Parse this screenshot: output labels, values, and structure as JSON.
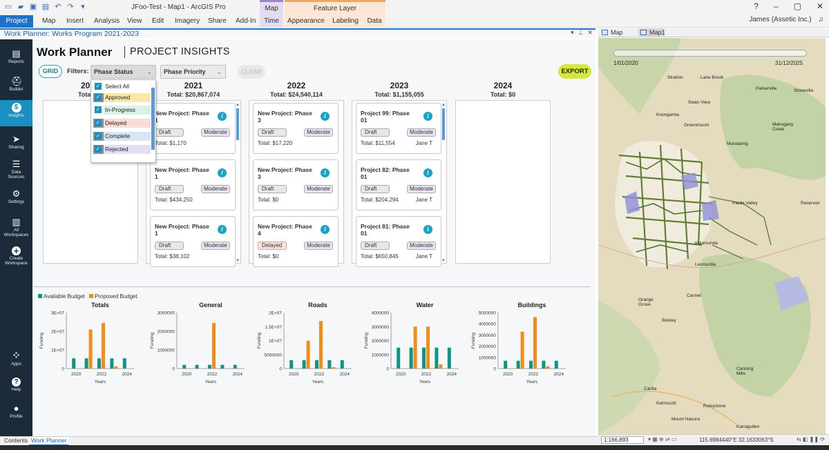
{
  "window": {
    "title": "JFoo-Test - Map1 - ArcGIS Pro",
    "ctx_map": "Map",
    "ctx_feature_layer": "Feature Layer",
    "user": "James (Assetic Inc.)"
  },
  "ribbon_tabs": [
    "Project",
    "Map",
    "Insert",
    "Analysis",
    "View",
    "Edit",
    "Imagery",
    "Share",
    "Add-In",
    "Time",
    "Appearance",
    "Labeling",
    "Data"
  ],
  "pane": {
    "title": "Work Planner: Works Program 2021-2023"
  },
  "sidebar": [
    {
      "label": "Reports",
      "icon": "reports-icon",
      "glyph": "▤"
    },
    {
      "label": "Builder",
      "icon": "builder-icon",
      "glyph": "⛑"
    },
    {
      "label": "Insights",
      "icon": "insights-icon",
      "glyph": "$"
    },
    {
      "label": "Sharing",
      "icon": "sharing-icon",
      "glyph": "➤"
    },
    {
      "label": "Data Sources",
      "icon": "database-icon",
      "glyph": "☰"
    },
    {
      "label": "Settings",
      "icon": "gear-icon",
      "glyph": "⚙"
    },
    {
      "label": "All Workspaces",
      "icon": "workspaces-icon",
      "glyph": "▥"
    },
    {
      "label": "Create Workspace",
      "icon": "plus-icon",
      "glyph": "+"
    },
    {
      "label": "Apps",
      "icon": "apps-grid-icon",
      "glyph": "⁘"
    },
    {
      "label": "Help",
      "icon": "help-icon",
      "glyph": "?"
    },
    {
      "label": "Profile",
      "icon": "profile-icon",
      "glyph": "●"
    }
  ],
  "header": {
    "title": "Work Planner",
    "subtitle": "PROJECT INSIGHTS"
  },
  "toolbar": {
    "grid_label": "GRID",
    "filters_label": "Filters:",
    "phase_status": "Phase Status",
    "phase_priority": "Phase Priority",
    "clear_label": "CLEAR",
    "export_label": "EXPORT"
  },
  "dropdown": {
    "items": [
      {
        "label": "Select All",
        "color": "#ffffff"
      },
      {
        "label": "Approved",
        "color": "#fbe8a6"
      },
      {
        "label": "In-Progress",
        "color": "#d9f2e6"
      },
      {
        "label": "Delayed",
        "color": "#f9dcd6"
      },
      {
        "label": "Complete",
        "color": "#d6e6f5"
      },
      {
        "label": "Rejected",
        "color": "#e4e0f3"
      }
    ]
  },
  "years": [
    {
      "year": "20",
      "total": "Total",
      "cards": []
    },
    {
      "year": "2021",
      "total": "Total: $20,867,074",
      "cards": [
        {
          "title": "New Project: Phase 1",
          "status": "Draft",
          "priority": "Moderate",
          "total": "Total: $1,170",
          "owner": ""
        },
        {
          "title": "New Project: Phase 1",
          "status": "Draft",
          "priority": "Moderate",
          "total": "Total: $434,250",
          "owner": ""
        },
        {
          "title": "New Project: Phase 1",
          "status": "Draft",
          "priority": "Moderate",
          "total": "Total: $38,102",
          "owner": ""
        }
      ]
    },
    {
      "year": "2022",
      "total": "Total: $24,540,114",
      "cards": [
        {
          "title": "New Project: Phase 3",
          "status": "Draft",
          "priority": "Moderate",
          "total": "Total: $17,220",
          "owner": ""
        },
        {
          "title": "New Project: Phase 3",
          "status": "Draft",
          "priority": "Moderate",
          "total": "Total: $0",
          "owner": ""
        },
        {
          "title": "New Project: Phase 4",
          "status": "Delayed",
          "priority": "Moderate",
          "total": "Total: $0",
          "owner": ""
        }
      ]
    },
    {
      "year": "2023",
      "total": "Total: $1,155,055",
      "cards": [
        {
          "title": "Project 99: Phase 01",
          "status": "Draft",
          "priority": "Moderate",
          "total": "Total: $11,554",
          "owner": "Jane T"
        },
        {
          "title": "Project 82: Phase 01",
          "status": "Draft",
          "priority": "Moderate",
          "total": "Total: $204,294",
          "owner": "Jane T"
        },
        {
          "title": "Project 81: Phase 01",
          "status": "Draft",
          "priority": "Moderate",
          "total": "Total: $650,845",
          "owner": "Jane T"
        }
      ]
    },
    {
      "year": "2024",
      "total": "Total: $0",
      "cards": []
    }
  ],
  "legend": {
    "available": "Available Budget",
    "proposed": "Proposed Budget",
    "available_color": "#0f9488",
    "proposed_color": "#f28c1a"
  },
  "chart_data": [
    {
      "type": "bar",
      "title": "Totals",
      "xlabel": "Years",
      "ylabel": "Funding",
      "x": [
        2020,
        2021,
        2022,
        2023,
        2024
      ],
      "yticks": [
        "3E+07",
        "2E+07",
        "1E+07",
        "0"
      ],
      "yticks_values": [
        30000000,
        20000000,
        10000000,
        0
      ],
      "ylim": [
        0,
        30000000
      ],
      "xticks": [
        "2020",
        "2022",
        "2024"
      ],
      "series": [
        {
          "name": "Available Budget",
          "values": [
            5500000,
            5500000,
            5500000,
            5500000,
            5500000
          ]
        },
        {
          "name": "Proposed Budget",
          "values": [
            0,
            21000000,
            24500000,
            1200000,
            0
          ]
        }
      ]
    },
    {
      "type": "bar",
      "title": "General",
      "xlabel": "Years",
      "ylabel": "Funding",
      "x": [
        2020,
        2021,
        2022,
        2023,
        2024
      ],
      "yticks": [
        "3000000",
        "2000000",
        "1000000",
        "0"
      ],
      "yticks_values": [
        3000000,
        2000000,
        1000000,
        0
      ],
      "ylim": [
        0,
        3000000
      ],
      "xticks": [
        "2020",
        "2022",
        "2024"
      ],
      "series": [
        {
          "name": "Available Budget",
          "values": [
            200000,
            200000,
            200000,
            200000,
            200000
          ]
        },
        {
          "name": "Proposed Budget",
          "values": [
            0,
            0,
            2450000,
            0,
            0
          ]
        }
      ]
    },
    {
      "type": "bar",
      "title": "Roads",
      "xlabel": "Years",
      "ylabel": "Funding",
      "x": [
        2020,
        2021,
        2022,
        2023,
        2024
      ],
      "yticks": [
        "2E+07",
        "1.5E+07",
        "1E+07",
        "5000000",
        "0"
      ],
      "yticks_values": [
        20000000,
        15000000,
        10000000,
        5000000,
        0
      ],
      "ylim": [
        0,
        20000000
      ],
      "xticks": [
        "2020",
        "2022",
        "2024"
      ],
      "series": [
        {
          "name": "Available Budget",
          "values": [
            3000000,
            3000000,
            3000000,
            3000000,
            3000000
          ]
        },
        {
          "name": "Proposed Budget",
          "values": [
            0,
            10000000,
            17000000,
            500000,
            0
          ]
        }
      ]
    },
    {
      "type": "bar",
      "title": "Water",
      "xlabel": "Years",
      "ylabel": "Funding",
      "x": [
        2020,
        2021,
        2022,
        2023,
        2024
      ],
      "yticks": [
        "4000000",
        "3000000",
        "2000000",
        "1000000",
        "0"
      ],
      "yticks_values": [
        4000000,
        3000000,
        2000000,
        1000000,
        0
      ],
      "ylim": [
        0,
        4000000
      ],
      "xticks": [
        "2020",
        "2022",
        "2024"
      ],
      "series": [
        {
          "name": "Available Budget",
          "values": [
            1500000,
            1500000,
            1500000,
            1500000,
            1500000
          ]
        },
        {
          "name": "Proposed Budget",
          "values": [
            0,
            3000000,
            3000000,
            300000,
            0
          ]
        }
      ]
    },
    {
      "type": "bar",
      "title": "Buildings",
      "xlabel": "Years",
      "ylabel": "Funding",
      "x": [
        2020,
        2021,
        2022,
        2023,
        2024
      ],
      "yticks": [
        "5000000",
        "4000000",
        "3000000",
        "2000000",
        "1000000",
        "0"
      ],
      "yticks_values": [
        5000000,
        4000000,
        3000000,
        2000000,
        1000000,
        0
      ],
      "ylim": [
        0,
        5000000
      ],
      "xticks": [
        "2020",
        "2022",
        "2024"
      ],
      "series": [
        {
          "name": "Available Budget",
          "values": [
            700000,
            700000,
            700000,
            700000,
            700000
          ]
        },
        {
          "name": "Proposed Budget",
          "values": [
            0,
            3300000,
            4600000,
            200000,
            0
          ]
        }
      ]
    }
  ],
  "map": {
    "tabs": [
      "Map",
      "Map1"
    ],
    "time_start": "1/01/2020",
    "time_end": "31/12/2025",
    "places": [
      "Stratton",
      "Lane Brook",
      "Swan View",
      "Koongamia",
      "Greenmount",
      "Parkerville",
      "Stoneville",
      "Mahogany Creek",
      "Paulls Valley",
      "Reservoir",
      "Orange Grove",
      "Bickley",
      "Carmel",
      "Kalamunda",
      "Lesmurdie",
      "Canning Mills",
      "Carilla",
      "Kelmscott",
      "Roleystone",
      "Mount Nasura",
      "Karragullen",
      "Mundaring"
    ],
    "scale": "1:166,893",
    "coords": "115.6984440°E 32.1633063°S"
  },
  "bottom_tabs": [
    "Contents",
    "Work Planner"
  ]
}
